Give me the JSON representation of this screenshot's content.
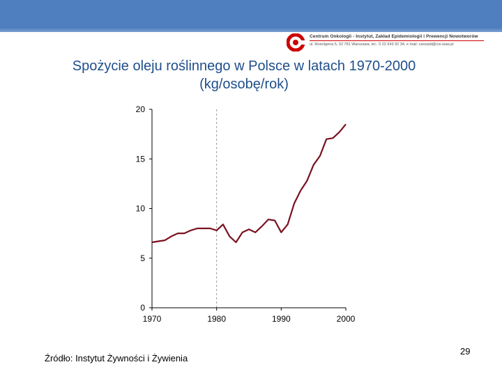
{
  "slide": {
    "header_logo_line1": "Centrum Onkologii - Instytut, Zakład Epidemiologii i Prewencji Nowotworów",
    "header_logo_line2": "ul. Roentgena 5, 02 781 Warszawa, tel.: 0 22 643 92 34, e mail: canepid@coi.waw.pl",
    "title_line1": "Spożycie oleju roślinnego w Polsce w latach 1970-2000",
    "title_line2": "(kg/osobę/rok)",
    "source": "Źródło: Instytut Żywności i Żywienia",
    "page_number": "29",
    "colors": {
      "header": "#4f7fbf",
      "title": "#1f4e8c",
      "line": "#7a1020",
      "logo_red": "#cc0000"
    }
  },
  "chart_data": {
    "type": "line",
    "xlim": [
      1970,
      2000
    ],
    "ylim": [
      0,
      20
    ],
    "x_ticks": [
      "1970",
      "1980",
      "1990",
      "2000"
    ],
    "y_ticks": [
      "0",
      "5",
      "10",
      "15",
      "20"
    ],
    "reference_line_x": 1980,
    "grid": false,
    "series": [
      {
        "x": [
          1970,
          1971,
          1972,
          1973,
          1974,
          1975,
          1976,
          1977,
          1978,
          1979,
          1980,
          1981,
          1982,
          1983,
          1984,
          1985,
          1986,
          1987,
          1988,
          1989,
          1990,
          1991,
          1992,
          1993,
          1994,
          1995,
          1996,
          1997,
          1998,
          1999,
          2000
        ],
        "y": [
          6.6,
          6.7,
          6.8,
          7.2,
          7.5,
          7.5,
          7.8,
          8.0,
          8.0,
          8.0,
          7.8,
          8.4,
          7.2,
          6.6,
          7.6,
          7.9,
          7.6,
          8.2,
          8.9,
          8.8,
          7.6,
          8.4,
          10.5,
          11.8,
          12.8,
          14.4,
          15.3,
          17.0,
          17.1,
          17.7,
          18.5
        ]
      }
    ]
  }
}
